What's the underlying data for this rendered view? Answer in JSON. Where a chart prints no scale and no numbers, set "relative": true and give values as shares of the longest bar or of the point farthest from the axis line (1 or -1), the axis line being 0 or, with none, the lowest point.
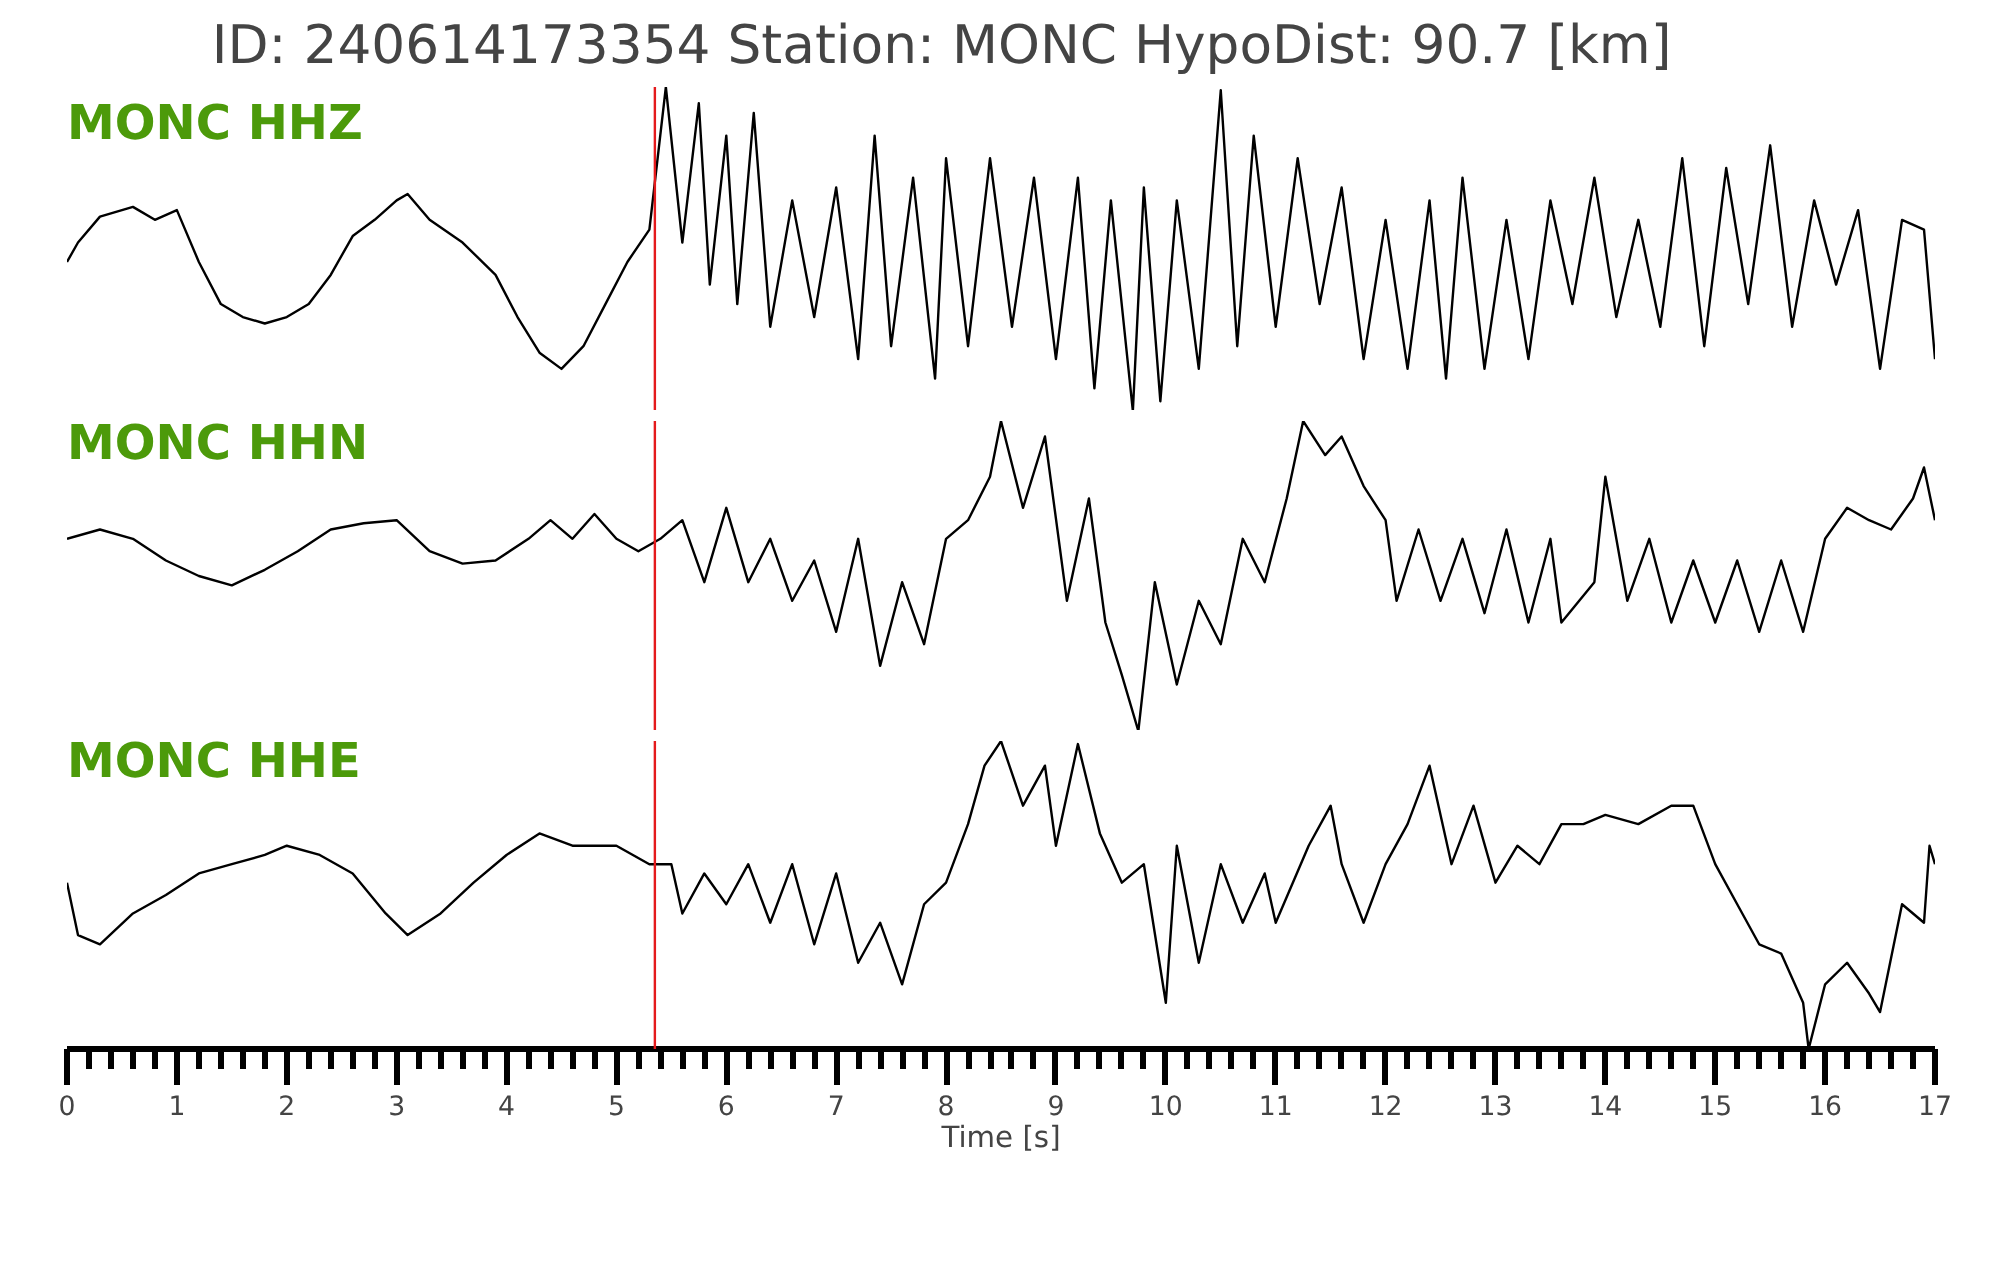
{
  "chart_data": [
    {
      "type": "line",
      "title": "ID: 240614173354   Station: MONC   HypoDist:    90.7 [km]",
      "annotations": [
        "MONC HHZ"
      ],
      "relative": true,
      "xlim": [
        0,
        17
      ],
      "tick_labels": false,
      "ref_lines": [
        {
          "axis": "x",
          "value": 5.35,
          "color": "#e41a1c"
        }
      ],
      "series": [
        {
          "color": "#000000",
          "x": [
            0,
            0.1,
            0.3,
            0.6,
            0.8,
            1.0,
            1.2,
            1.4,
            1.6,
            1.8,
            2.0,
            2.2,
            2.4,
            2.6,
            2.8,
            3.0,
            3.1,
            3.3,
            3.6,
            3.9,
            4.1,
            4.3,
            4.5,
            4.7,
            4.9,
            5.1,
            5.3,
            5.45,
            5.6,
            5.75,
            5.85,
            6.0,
            6.1,
            6.25,
            6.4,
            6.6,
            6.8,
            7.0,
            7.2,
            7.35,
            7.5,
            7.7,
            7.9,
            8.0,
            8.2,
            8.4,
            8.6,
            8.8,
            9.0,
            9.2,
            9.35,
            9.5,
            9.7,
            9.8,
            9.95,
            10.1,
            10.3,
            10.5,
            10.65,
            10.8,
            11.0,
            11.2,
            11.4,
            11.6,
            11.8,
            12.0,
            12.2,
            12.4,
            12.55,
            12.7,
            12.9,
            13.1,
            13.3,
            13.5,
            13.7,
            13.9,
            14.1,
            14.3,
            14.5,
            14.7,
            14.9,
            15.1,
            15.3,
            15.5,
            15.7,
            15.9,
            16.1,
            16.3,
            16.5,
            16.7,
            16.9,
            17.0
          ],
          "values": [
            0.46,
            0.52,
            0.6,
            0.63,
            0.59,
            0.62,
            0.46,
            0.33,
            0.29,
            0.27,
            0.29,
            0.33,
            0.42,
            0.54,
            0.59,
            0.65,
            0.67,
            0.59,
            0.52,
            0.42,
            0.29,
            0.18,
            0.13,
            0.2,
            0.33,
            0.46,
            0.56,
            1,
            0.52,
            0.95,
            0.39,
            0.85,
            0.33,
            0.92,
            0.26,
            0.65,
            0.29,
            0.69,
            0.16,
            0.85,
            0.2,
            0.72,
            0.1,
            0.78,
            0.2,
            0.78,
            0.26,
            0.72,
            0.16,
            0.72,
            0.07,
            0.65,
            0,
            0.69,
            0.03,
            0.65,
            0.13,
            0.99,
            0.2,
            0.85,
            0.26,
            0.78,
            0.33,
            0.69,
            0.16,
            0.59,
            0.13,
            0.65,
            0.1,
            0.72,
            0.13,
            0.59,
            0.16,
            0.65,
            0.33,
            0.72,
            0.29,
            0.59,
            0.26,
            0.78,
            0.2,
            0.75,
            0.33,
            0.82,
            0.26,
            0.65,
            0.39,
            0.62,
            0.13,
            0.59,
            0.56,
            0.16
          ]
        }
      ]
    },
    {
      "type": "line",
      "annotations": [
        "MONC HHN"
      ],
      "relative": true,
      "xlim": [
        0,
        17
      ],
      "tick_labels": false,
      "ref_lines": [
        {
          "axis": "x",
          "value": 5.35,
          "color": "#e41a1c"
        }
      ],
      "series": [
        {
          "color": "#000000",
          "x": [
            0,
            0.3,
            0.6,
            0.9,
            1.2,
            1.5,
            1.8,
            2.1,
            2.4,
            2.7,
            3.0,
            3.3,
            3.6,
            3.9,
            4.2,
            4.4,
            4.6,
            4.8,
            5.0,
            5.2,
            5.4,
            5.6,
            5.8,
            6.0,
            6.2,
            6.4,
            6.6,
            6.8,
            7.0,
            7.2,
            7.4,
            7.6,
            7.8,
            8.0,
            8.2,
            8.4,
            8.5,
            8.7,
            8.9,
            9.1,
            9.3,
            9.45,
            9.6,
            9.75,
            9.9,
            10.1,
            10.3,
            10.5,
            10.7,
            10.9,
            11.1,
            11.25,
            11.45,
            11.6,
            11.8,
            12.0,
            12.1,
            12.3,
            12.5,
            12.7,
            12.9,
            13.1,
            13.3,
            13.5,
            13.6,
            13.9,
            14.0,
            14.2,
            14.4,
            14.6,
            14.8,
            15.0,
            15.2,
            15.4,
            15.6,
            15.8,
            16.0,
            16.2,
            16.4,
            16.6,
            16.8,
            16.9,
            17.0
          ],
          "values": [
            0.62,
            0.65,
            0.62,
            0.55,
            0.5,
            0.47,
            0.52,
            0.58,
            0.65,
            0.67,
            0.68,
            0.58,
            0.54,
            0.55,
            0.62,
            0.68,
            0.62,
            0.7,
            0.62,
            0.58,
            0.62,
            0.68,
            0.48,
            0.72,
            0.48,
            0.62,
            0.42,
            0.55,
            0.32,
            0.62,
            0.21,
            0.48,
            0.28,
            0.62,
            0.68,
            0.82,
            1,
            0.72,
            0.95,
            0.42,
            0.75,
            0.35,
            0.18,
            0,
            0.48,
            0.15,
            0.42,
            0.28,
            0.62,
            0.48,
            0.75,
            1,
            0.89,
            0.95,
            0.79,
            0.68,
            0.42,
            0.65,
            0.42,
            0.62,
            0.38,
            0.65,
            0.35,
            0.62,
            0.35,
            0.48,
            0.82,
            0.42,
            0.62,
            0.35,
            0.55,
            0.35,
            0.55,
            0.32,
            0.55,
            0.32,
            0.62,
            0.72,
            0.68,
            0.65,
            0.75,
            0.85,
            0.68
          ]
        }
      ]
    },
    {
      "type": "line",
      "annotations": [
        "MONC HHE"
      ],
      "xlabel": "Time [s]",
      "relative": true,
      "xlim": [
        0,
        17
      ],
      "xticks": [
        0,
        1,
        2,
        3,
        4,
        5,
        6,
        7,
        8,
        9,
        10,
        11,
        12,
        13,
        14,
        15,
        16,
        17
      ],
      "tick_labels": "x",
      "ref_lines": [
        {
          "axis": "x",
          "value": 5.35,
          "color": "#e41a1c"
        }
      ],
      "series": [
        {
          "color": "#000000",
          "x": [
            0,
            0.1,
            0.3,
            0.6,
            0.9,
            1.2,
            1.5,
            1.8,
            2.0,
            2.3,
            2.6,
            2.9,
            3.1,
            3.4,
            3.7,
            4.0,
            4.3,
            4.6,
            5.0,
            5.3,
            5.5,
            5.6,
            5.8,
            6.0,
            6.2,
            6.4,
            6.6,
            6.8,
            7.0,
            7.2,
            7.4,
            7.6,
            7.8,
            8.0,
            8.2,
            8.35,
            8.5,
            8.7,
            8.9,
            9.0,
            9.2,
            9.4,
            9.6,
            9.8,
            10.0,
            10.1,
            10.3,
            10.5,
            10.7,
            10.9,
            11.0,
            11.3,
            11.5,
            11.6,
            11.8,
            12.0,
            12.2,
            12.4,
            12.6,
            12.8,
            13.0,
            13.2,
            13.4,
            13.6,
            13.8,
            14.0,
            14.3,
            14.6,
            14.8,
            15.0,
            15.2,
            15.4,
            15.6,
            15.8,
            15.85,
            16.0,
            16.2,
            16.4,
            16.5,
            16.7,
            16.9,
            16.95,
            17.0
          ],
          "values": [
            0.54,
            0.37,
            0.34,
            0.44,
            0.5,
            0.57,
            0.6,
            0.63,
            0.66,
            0.63,
            0.57,
            0.44,
            0.37,
            0.44,
            0.54,
            0.63,
            0.7,
            0.66,
            0.66,
            0.6,
            0.6,
            0.44,
            0.57,
            0.47,
            0.6,
            0.41,
            0.6,
            0.34,
            0.57,
            0.28,
            0.41,
            0.21,
            0.47,
            0.54,
            0.73,
            0.92,
            1,
            0.79,
            0.92,
            0.66,
            0.99,
            0.7,
            0.54,
            0.6,
            0.15,
            0.66,
            0.28,
            0.6,
            0.41,
            0.57,
            0.41,
            0.66,
            0.79,
            0.6,
            0.41,
            0.6,
            0.73,
            0.92,
            0.6,
            0.79,
            0.54,
            0.66,
            0.6,
            0.73,
            0.73,
            0.76,
            0.73,
            0.79,
            0.79,
            0.6,
            0.47,
            0.34,
            0.31,
            0.15,
            0,
            0.21,
            0.28,
            0.18,
            0.12,
            0.47,
            0.41,
            0.66,
            0.6
          ]
        }
      ]
    }
  ]
}
